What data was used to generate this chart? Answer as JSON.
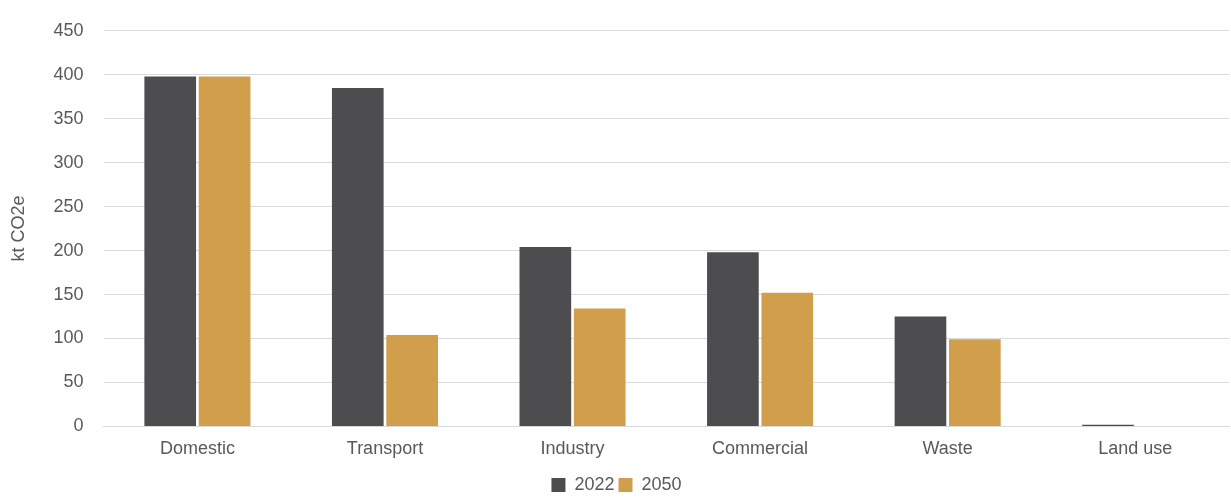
{
  "chart_data": {
    "type": "bar",
    "ylabel": "kt CO2e",
    "categories": [
      "Domestic",
      "Transport",
      "Industry",
      "Commercial",
      "Waste",
      "Land use"
    ],
    "series": [
      {
        "name": "2022",
        "color": "#4d4d4f",
        "values": [
          398,
          385,
          204,
          198,
          125,
          2
        ]
      },
      {
        "name": "2050",
        "color": "#d19f4c",
        "values": [
          398,
          104,
          134,
          152,
          99,
          0
        ]
      }
    ],
    "ylim": [
      0,
      450
    ],
    "yticks": [
      0,
      50,
      100,
      150,
      200,
      250,
      300,
      350,
      400,
      450
    ],
    "grid": "y",
    "legend": "bottom"
  }
}
